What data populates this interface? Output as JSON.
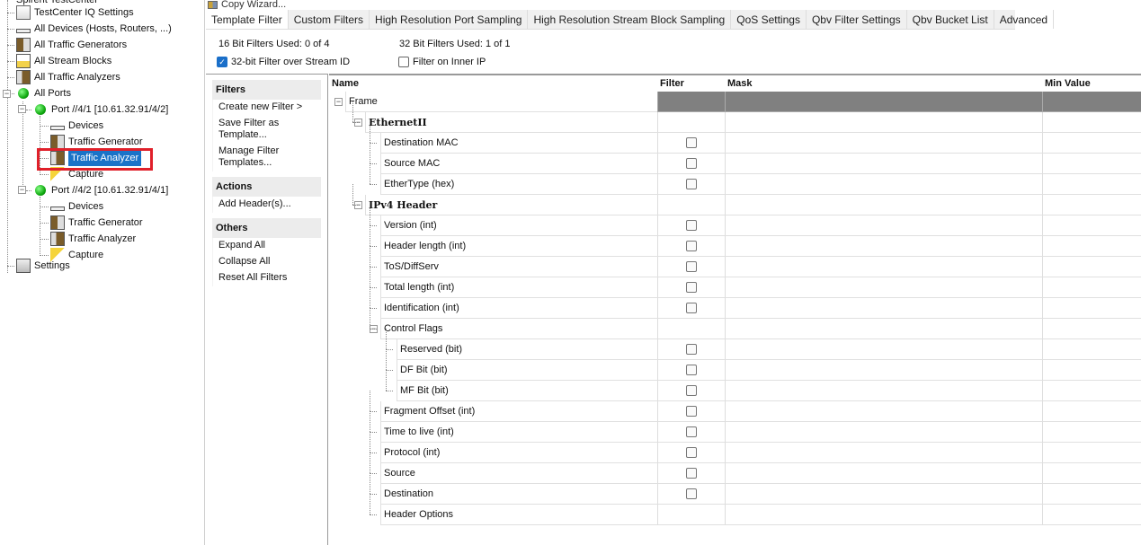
{
  "tree": {
    "root": "Spirent TestCenter",
    "items": [
      {
        "label": "TestCenter IQ Settings",
        "icon": "settings-doc-icon"
      },
      {
        "label": "All Devices (Hosts, Routers, ...)",
        "icon": "device-icon"
      },
      {
        "label": "All Traffic Generators",
        "icon": "traffic-generator-icon"
      },
      {
        "label": "All Stream Blocks",
        "icon": "stream-block-icon"
      },
      {
        "label": "All Traffic Analyzers",
        "icon": "traffic-analyzer-icon"
      },
      {
        "label": "All Ports",
        "icon": "port-status-green-icon"
      }
    ],
    "ports": [
      {
        "label": "Port //4/1 [10.61.32.91/4/2]",
        "children": [
          "Devices",
          "Traffic Generator",
          "Traffic Analyzer",
          "Capture"
        ]
      },
      {
        "label": "Port //4/2 [10.61.32.91/4/1]",
        "children": [
          "Devices",
          "Traffic Generator",
          "Traffic Analyzer",
          "Capture"
        ]
      }
    ],
    "settings": "Settings",
    "selected": "Traffic Analyzer"
  },
  "toolbar": {
    "copy_wizard": "Copy Wizard..."
  },
  "tabs": [
    "Template Filter",
    "Custom Filters",
    "High Resolution Port Sampling",
    "High Resolution Stream Block Sampling",
    "QoS Settings",
    "Qbv Filter Settings",
    "Qbv Bucket List",
    "Advanced"
  ],
  "active_tab": "Template Filter",
  "info": {
    "f16": "16 Bit Filters Used:  0  of 4",
    "f32": "32 Bit Filters Used:  1  of 1",
    "opt_stream": {
      "label": "32-bit Filter over Stream ID",
      "checked": true
    },
    "opt_inner": {
      "label": "Filter on Inner IP",
      "checked": false
    }
  },
  "side": {
    "filters": {
      "title": "Filters",
      "items": [
        "Create new Filter >",
        "Save Filter as Template...",
        "Manage Filter Templates..."
      ]
    },
    "actions": {
      "title": "Actions",
      "items": [
        "Add Header(s)..."
      ]
    },
    "others": {
      "title": "Others",
      "items": [
        "Expand All",
        "Collapse All",
        "Reset All Filters"
      ]
    }
  },
  "grid": {
    "columns": [
      "Name",
      "Filter",
      "Mask",
      "Min Value"
    ],
    "rows": [
      {
        "name": "Frame",
        "level": 0,
        "type": "root"
      },
      {
        "name": "EthernetII",
        "level": 1,
        "type": "group"
      },
      {
        "name": "Destination MAC",
        "level": 2,
        "type": "field",
        "checked": false
      },
      {
        "name": "Source MAC",
        "level": 2,
        "type": "field",
        "checked": false
      },
      {
        "name": "EtherType (hex)",
        "level": 2,
        "type": "field",
        "checked": false
      },
      {
        "name": "IPv4 Header",
        "level": 1,
        "type": "group"
      },
      {
        "name": "Version (int)",
        "level": 2,
        "type": "field",
        "checked": false
      },
      {
        "name": "Header length (int)",
        "level": 2,
        "type": "field",
        "checked": false
      },
      {
        "name": "ToS/DiffServ",
        "level": 2,
        "type": "field",
        "checked": false
      },
      {
        "name": "Total length (int)",
        "level": 2,
        "type": "field",
        "checked": false
      },
      {
        "name": "Identification (int)",
        "level": 2,
        "type": "field",
        "checked": false
      },
      {
        "name": "Control Flags",
        "level": 2,
        "type": "subgroup"
      },
      {
        "name": "Reserved (bit)",
        "level": 3,
        "type": "field",
        "checked": false
      },
      {
        "name": "DF Bit (bit)",
        "level": 3,
        "type": "field",
        "checked": false
      },
      {
        "name": "MF Bit (bit)",
        "level": 3,
        "type": "field",
        "checked": false
      },
      {
        "name": "Fragment Offset (int)",
        "level": 2,
        "type": "field",
        "checked": false
      },
      {
        "name": "Time to live (int)",
        "level": 2,
        "type": "field",
        "checked": false
      },
      {
        "name": "Protocol (int)",
        "level": 2,
        "type": "field",
        "checked": false
      },
      {
        "name": "Source",
        "level": 2,
        "type": "field",
        "checked": false
      },
      {
        "name": "Destination",
        "level": 2,
        "type": "field",
        "checked": false
      },
      {
        "name": "Header Options",
        "level": 2,
        "type": "leaf"
      }
    ]
  },
  "colors": {
    "selection": "#1a73c8",
    "highlight_box": "#e0202a",
    "root_row": "#808080",
    "checkbox_checked": "#1a6fc9"
  }
}
